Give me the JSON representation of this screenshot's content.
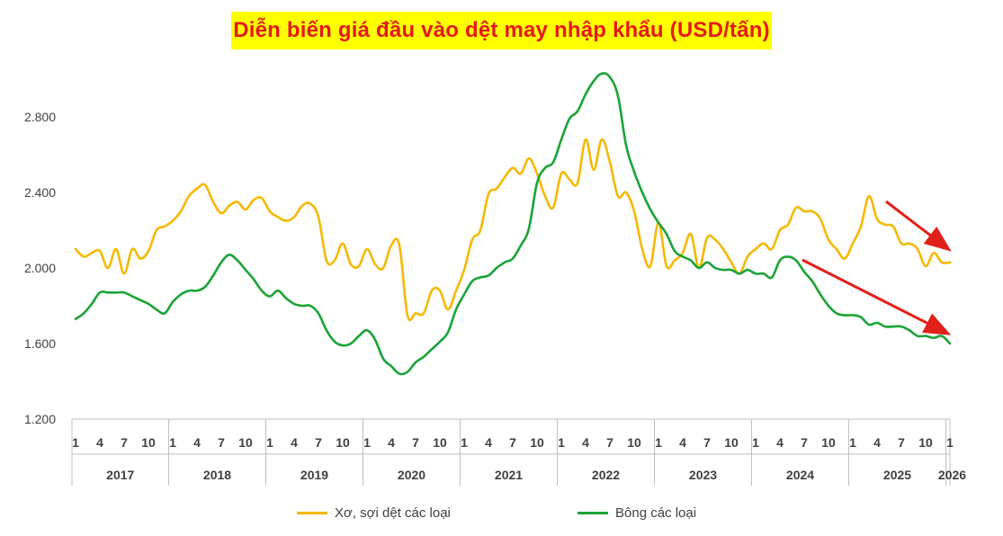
{
  "chart_data": {
    "type": "line",
    "title": "Diễn biến giá đầu vào dệt may nhập khẩu (USD/tấn)",
    "ylim": [
      1200,
      3000
    ],
    "yticks": [
      "1.200",
      "1.600",
      "2.000",
      "2.400",
      "2.800"
    ],
    "ytick_values": [
      1200,
      1600,
      2000,
      2400,
      2800
    ],
    "grid": false,
    "legend_position": "bottom",
    "years": [
      "2017",
      "2018",
      "2019",
      "2020",
      "2021",
      "2022",
      "2023",
      "2024",
      "2025",
      "2026"
    ],
    "month_ticks": [
      "1",
      "4",
      "7",
      "10"
    ],
    "x_months": [
      "2017-01",
      "2017-02",
      "2017-03",
      "2017-04",
      "2017-05",
      "2017-06",
      "2017-07",
      "2017-08",
      "2017-09",
      "2017-10",
      "2017-11",
      "2017-12",
      "2018-01",
      "2018-02",
      "2018-03",
      "2018-04",
      "2018-05",
      "2018-06",
      "2018-07",
      "2018-08",
      "2018-09",
      "2018-10",
      "2018-11",
      "2018-12",
      "2019-01",
      "2019-02",
      "2019-03",
      "2019-04",
      "2019-05",
      "2019-06",
      "2019-07",
      "2019-08",
      "2019-09",
      "2019-10",
      "2019-11",
      "2019-12",
      "2020-01",
      "2020-02",
      "2020-03",
      "2020-04",
      "2020-05",
      "2020-06",
      "2020-07",
      "2020-08",
      "2020-09",
      "2020-10",
      "2020-11",
      "2020-12",
      "2021-01",
      "2021-02",
      "2021-03",
      "2021-04",
      "2021-05",
      "2021-06",
      "2021-07",
      "2021-08",
      "2021-09",
      "2021-10",
      "2021-11",
      "2021-12",
      "2022-01",
      "2022-02",
      "2022-03",
      "2022-04",
      "2022-05",
      "2022-06",
      "2022-07",
      "2022-08",
      "2022-09",
      "2022-10",
      "2022-11",
      "2022-12",
      "2023-01",
      "2023-02",
      "2023-03",
      "2023-04",
      "2023-05",
      "2023-06",
      "2023-07",
      "2023-08",
      "2023-09",
      "2023-10",
      "2023-11",
      "2023-12",
      "2024-01",
      "2024-02",
      "2024-03",
      "2024-04",
      "2024-05",
      "2024-06",
      "2024-07",
      "2024-08",
      "2024-09",
      "2024-10",
      "2024-11",
      "2024-12",
      "2025-01",
      "2025-02",
      "2025-03",
      "2025-04",
      "2025-05",
      "2025-06",
      "2025-07",
      "2025-08",
      "2025-09",
      "2025-10",
      "2025-11",
      "2025-12",
      "2026-01"
    ],
    "series": [
      {
        "name": "Xơ, sợi dệt các loại",
        "color": "#f5b800",
        "values": [
          2100,
          2060,
          2080,
          2090,
          2000,
          2100,
          1970,
          2100,
          2050,
          2090,
          2200,
          2220,
          2250,
          2300,
          2380,
          2420,
          2440,
          2350,
          2290,
          2330,
          2350,
          2310,
          2360,
          2370,
          2300,
          2270,
          2250,
          2270,
          2330,
          2340,
          2270,
          2040,
          2040,
          2130,
          2020,
          2010,
          2100,
          2020,
          2000,
          2120,
          2120,
          1750,
          1760,
          1760,
          1880,
          1880,
          1780,
          1880,
          1990,
          2150,
          2200,
          2390,
          2420,
          2480,
          2530,
          2500,
          2580,
          2500,
          2380,
          2320,
          2500,
          2470,
          2450,
          2680,
          2520,
          2680,
          2560,
          2380,
          2400,
          2300,
          2100,
          2010,
          2240,
          2010,
          2040,
          2080,
          2180,
          2000,
          2160,
          2150,
          2100,
          2030,
          1970,
          2060,
          2100,
          2130,
          2100,
          2200,
          2230,
          2320,
          2300,
          2300,
          2260,
          2150,
          2100,
          2050,
          2130,
          2220,
          2380,
          2260,
          2230,
          2220,
          2130,
          2130,
          2100,
          2010,
          2080,
          2030,
          2030
        ]
      },
      {
        "name": "Bông các loại",
        "color": "#1aa336",
        "values": [
          1730,
          1760,
          1810,
          1870,
          1870,
          1870,
          1870,
          1850,
          1830,
          1810,
          1780,
          1760,
          1820,
          1860,
          1880,
          1880,
          1900,
          1960,
          2030,
          2070,
          2040,
          1990,
          1940,
          1880,
          1850,
          1880,
          1840,
          1810,
          1800,
          1800,
          1760,
          1670,
          1610,
          1590,
          1600,
          1640,
          1670,
          1620,
          1520,
          1480,
          1440,
          1450,
          1500,
          1530,
          1570,
          1610,
          1660,
          1780,
          1860,
          1930,
          1950,
          1960,
          2000,
          2030,
          2050,
          2120,
          2210,
          2450,
          2530,
          2560,
          2680,
          2790,
          2830,
          2920,
          2990,
          3030,
          3010,
          2910,
          2650,
          2510,
          2400,
          2310,
          2240,
          2180,
          2090,
          2060,
          2040,
          2000,
          2030,
          2000,
          1990,
          1990,
          1970,
          1990,
          1970,
          1970,
          1950,
          2040,
          2060,
          2040,
          1980,
          1930,
          1860,
          1800,
          1760,
          1750,
          1750,
          1740,
          1700,
          1710,
          1690,
          1690,
          1690,
          1670,
          1640,
          1640,
          1630,
          1640,
          1600
        ]
      }
    ],
    "annotations": [
      "trend-arrow-xo-soi",
      "trend-arrow-bong"
    ]
  }
}
